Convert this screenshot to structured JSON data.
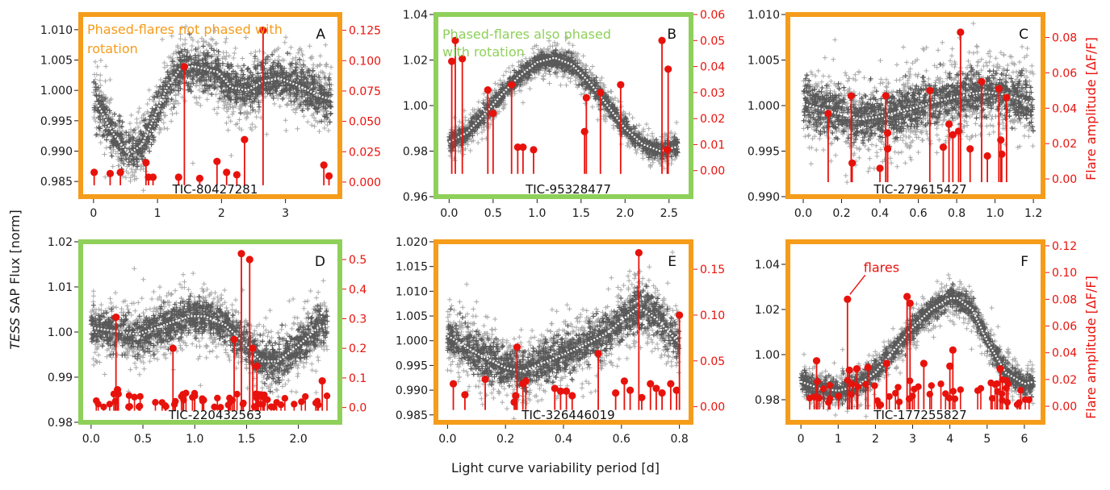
{
  "figure": {
    "ylabel_italic": "TESS",
    "ylabel_rest": " SAP Flux [norm]",
    "xlabel": "Light curve variability period [d]",
    "y2label": "Flare amplitude [ΔF/F]"
  },
  "colors": {
    "orange": "#f59c1a",
    "green": "#8fd05a",
    "flux": "#595959",
    "binned": "#ffffff",
    "flare": "#e8120c",
    "axis": "#1a1a1a"
  },
  "chart_data": [
    {
      "id": "A",
      "type": "scatter",
      "label": "A",
      "tic": "TIC-80427281",
      "frame": "orange",
      "annotation": {
        "text": "Phased-flares not phased with rotation",
        "lines": [
          "Phased-flares not phased with",
          "rotation"
        ],
        "color": "orange"
      },
      "xlim": [
        -0.2,
        3.85
      ],
      "xticks": [
        0,
        1,
        2,
        3
      ],
      "xticklabels": [
        "0",
        "1",
        "2",
        "3"
      ],
      "ylim": [
        0.9825,
        1.0125
      ],
      "yticks": [
        0.985,
        0.99,
        0.995,
        1.0,
        1.005,
        1.01
      ],
      "yticklabels": [
        "0.985",
        "0.990",
        "0.995",
        "1.000",
        "1.005",
        "1.010"
      ],
      "y2lim": [
        -0.012,
        0.138
      ],
      "y2ticks": [
        0,
        0.025,
        0.05,
        0.075,
        0.1,
        0.125
      ],
      "y2ticklabels": [
        "0.000",
        "0.025",
        "0.050",
        "0.075",
        "0.100",
        "0.125"
      ],
      "trend": [
        [
          0,
          0.999
        ],
        [
          0.3,
          0.993
        ],
        [
          0.55,
          0.9895
        ],
        [
          0.75,
          0.991
        ],
        [
          0.95,
          0.9955
        ],
        [
          1.15,
          1.0005
        ],
        [
          1.35,
          1.0035
        ],
        [
          1.55,
          1.004
        ],
        [
          1.75,
          1.0035
        ],
        [
          1.95,
          1.003
        ],
        [
          2.15,
          1.0005
        ],
        [
          2.4,
          1.0
        ],
        [
          2.65,
          1.0015
        ],
        [
          2.9,
          1.002
        ],
        [
          3.2,
          1.0008
        ],
        [
          3.55,
          0.999
        ],
        [
          3.72,
          0.9985
        ]
      ],
      "scatter_sigma": 0.0028,
      "flares": [
        [
          0.01,
          0.008
        ],
        [
          0.26,
          0.007
        ],
        [
          0.42,
          0.008
        ],
        [
          0.82,
          0.016
        ],
        [
          0.86,
          0.004
        ],
        [
          0.93,
          0.004
        ],
        [
          1.33,
          0.004
        ],
        [
          1.42,
          0.095
        ],
        [
          1.66,
          0.003
        ],
        [
          1.93,
          0.017
        ],
        [
          2.08,
          0.008
        ],
        [
          2.24,
          0.006
        ],
        [
          2.36,
          0.035
        ],
        [
          2.65,
          0.125
        ],
        [
          3.6,
          0.014
        ],
        [
          3.68,
          0.005
        ]
      ]
    },
    {
      "id": "B",
      "type": "scatter",
      "label": "B",
      "tic": "TIC-95328477",
      "frame": "green",
      "annotation": {
        "text": "Phased-flares also phased with rotation",
        "lines": [
          "Phased-flares also phased",
          "with rotation"
        ],
        "color": "green"
      },
      "xlim": [
        -0.15,
        2.75
      ],
      "xticks": [
        0,
        0.5,
        1,
        1.5,
        2,
        2.5
      ],
      "xticklabels": [
        "0.0",
        "0.5",
        "1.0",
        "1.5",
        "2.0",
        "2.5"
      ],
      "ylim": [
        0.96,
        1.04
      ],
      "yticks": [
        0.96,
        0.98,
        1.0,
        1.02,
        1.04
      ],
      "yticklabels": [
        "0.96",
        "0.98",
        "1.00",
        "1.02",
        "1.04"
      ],
      "y2lim": [
        -0.01,
        0.06
      ],
      "y2ticks": [
        0,
        0.01,
        0.02,
        0.03,
        0.04,
        0.05,
        0.06
      ],
      "y2ticklabels": [
        "0.00",
        "0.01",
        "0.02",
        "0.03",
        "0.04",
        "0.05",
        "0.06"
      ],
      "trend": [
        [
          0,
          0.984
        ],
        [
          0.2,
          0.988
        ],
        [
          0.4,
          0.996
        ],
        [
          0.6,
          1.005
        ],
        [
          0.8,
          1.013
        ],
        [
          1.0,
          1.019
        ],
        [
          1.2,
          1.021
        ],
        [
          1.4,
          1.018
        ],
        [
          1.6,
          1.01
        ],
        [
          1.8,
          1.0
        ],
        [
          2.0,
          0.99
        ],
        [
          2.2,
          0.983
        ],
        [
          2.4,
          0.98
        ],
        [
          2.6,
          0.982
        ]
      ],
      "scatter_sigma": 0.0035,
      "flares": [
        [
          0.03,
          0.042
        ],
        [
          0.07,
          0.05
        ],
        [
          0.15,
          0.043
        ],
        [
          0.44,
          0.031
        ],
        [
          0.5,
          0.022
        ],
        [
          0.71,
          0.033
        ],
        [
          0.78,
          0.009
        ],
        [
          0.84,
          0.009
        ],
        [
          0.96,
          0.008
        ],
        [
          1.54,
          0.015
        ],
        [
          1.56,
          0.028
        ],
        [
          1.72,
          0.03
        ],
        [
          1.95,
          0.033
        ],
        [
          2.42,
          0.05
        ],
        [
          2.48,
          0.008
        ],
        [
          2.49,
          0.039
        ]
      ]
    },
    {
      "id": "C",
      "type": "scatter",
      "label": "C",
      "tic": "TIC-279615427",
      "frame": "orange",
      "annotation": null,
      "xlim": [
        -0.08,
        1.25
      ],
      "xticks": [
        0,
        0.2,
        0.4,
        0.6,
        0.8,
        1.0,
        1.2
      ],
      "xticklabels": [
        "0.0",
        "0.2",
        "0.4",
        "0.6",
        "0.8",
        "1.0",
        "1.2"
      ],
      "ylim": [
        0.99,
        1.01
      ],
      "yticks": [
        0.99,
        0.995,
        1.0,
        1.005,
        1.01
      ],
      "yticklabels": [
        "0.990",
        "0.995",
        "1.000",
        "1.005",
        "1.010"
      ],
      "y2lim": [
        -0.01,
        0.093
      ],
      "y2ticks": [
        0,
        0.02,
        0.04,
        0.06,
        0.08
      ],
      "y2ticklabels": [
        "0.00",
        "0.02",
        "0.04",
        "0.06",
        "0.08"
      ],
      "trend": [
        [
          0,
          1.0002
        ],
        [
          0.15,
          0.9993
        ],
        [
          0.3,
          0.9985
        ],
        [
          0.4,
          0.9988
        ],
        [
          0.55,
          0.9996
        ],
        [
          0.7,
          1.0005
        ],
        [
          0.85,
          1.0012
        ],
        [
          0.95,
          1.0015
        ],
        [
          1.05,
          1.0012
        ],
        [
          1.2,
          1.0002
        ]
      ],
      "scatter_sigma": 0.0022,
      "flares": [
        [
          0.13,
          0.037
        ],
        [
          0.25,
          0.047
        ],
        [
          0.255,
          0.009
        ],
        [
          0.4,
          0.006
        ],
        [
          0.43,
          0.047
        ],
        [
          0.44,
          0.026
        ],
        [
          0.44,
          0.017
        ],
        [
          0.66,
          0.05
        ],
        [
          0.73,
          0.018
        ],
        [
          0.76,
          0.031
        ],
        [
          0.78,
          0.025
        ],
        [
          0.81,
          0.027
        ],
        [
          0.82,
          0.083
        ],
        [
          0.87,
          0.017
        ],
        [
          0.93,
          0.055
        ],
        [
          0.96,
          0.013
        ],
        [
          1.02,
          0.051
        ],
        [
          1.03,
          0.022
        ],
        [
          1.035,
          0.014
        ],
        [
          1.06,
          0.046
        ]
      ]
    },
    {
      "id": "D",
      "type": "scatter",
      "label": "D",
      "tic": "TIC-220432563",
      "frame": "green",
      "annotation": null,
      "xlim": [
        -0.1,
        2.4
      ],
      "xticks": [
        0,
        0.5,
        1,
        1.5,
        2
      ],
      "xticklabels": [
        "0.0",
        "0.5",
        "1.0",
        "1.5",
        "2.0"
      ],
      "ylim": [
        0.98,
        1.02
      ],
      "yticks": [
        0.98,
        0.99,
        1.0,
        1.01,
        1.02
      ],
      "yticklabels": [
        "0.98",
        "0.99",
        "1.00",
        "1.01",
        "1.02"
      ],
      "y2lim": [
        -0.05,
        0.56
      ],
      "y2ticks": [
        0,
        0.1,
        0.2,
        0.3,
        0.4,
        0.5
      ],
      "y2ticklabels": [
        "0.0",
        "0.1",
        "0.2",
        "0.3",
        "0.4",
        "0.5"
      ],
      "trend": [
        [
          0,
          1.001
        ],
        [
          0.2,
          1.0003
        ],
        [
          0.45,
          0.9995
        ],
        [
          0.7,
          1.0015
        ],
        [
          0.95,
          1.0035
        ],
        [
          1.1,
          1.0035
        ],
        [
          1.3,
          1.0015
        ],
        [
          1.5,
          0.997
        ],
        [
          1.65,
          0.9935
        ],
        [
          1.8,
          0.9935
        ],
        [
          2.0,
          0.997
        ],
        [
          2.2,
          1.0012
        ],
        [
          2.28,
          1.0012
        ]
      ],
      "scatter_sigma": 0.0035,
      "flares": [
        [
          0.24,
          0.305
        ],
        [
          0.255,
          0.06
        ],
        [
          0.79,
          0.2
        ],
        [
          1.38,
          0.23
        ],
        [
          1.45,
          0.52
        ],
        [
          1.53,
          0.5
        ],
        [
          1.56,
          0.2
        ],
        [
          1.6,
          0.14
        ],
        [
          2.23,
          0.09
        ]
      ],
      "small_flares": {
        "x_range": [
          0.0,
          2.3
        ],
        "count": 62,
        "y_range": [
          0.0,
          0.05
        ]
      }
    },
    {
      "id": "E",
      "type": "scatter",
      "label": "E",
      "tic": "TIC-326446019",
      "frame": "orange",
      "annotation": null,
      "xlim": [
        -0.04,
        0.84
      ],
      "xticks": [
        0,
        0.2,
        0.4,
        0.6,
        0.8
      ],
      "xticklabels": [
        "0.0",
        "0.2",
        "0.4",
        "0.6",
        "0.8"
      ],
      "ylim": [
        0.9835,
        1.02
      ],
      "yticks": [
        0.985,
        0.99,
        0.995,
        1.0,
        1.005,
        1.01,
        1.015,
        1.02
      ],
      "yticklabels": [
        "0.985",
        "0.990",
        "0.995",
        "1.000",
        "1.005",
        "1.010",
        "1.015",
        "1.020"
      ],
      "y2lim": [
        -0.017,
        0.18
      ],
      "y2ticks": [
        0,
        0.05,
        0.1,
        0.15
      ],
      "y2ticklabels": [
        "0.00",
        "0.05",
        "0.10",
        "0.15"
      ],
      "trend": [
        [
          0,
          1.001
        ],
        [
          0.1,
          0.9975
        ],
        [
          0.2,
          0.9945
        ],
        [
          0.26,
          0.9938
        ],
        [
          0.35,
          0.996
        ],
        [
          0.45,
          0.9985
        ],
        [
          0.55,
          1.0015
        ],
        [
          0.62,
          1.005
        ],
        [
          0.66,
          1.0068
        ],
        [
          0.72,
          1.0045
        ],
        [
          0.8,
          0.9995
        ]
      ],
      "scatter_sigma": 0.0035,
      "flares": [
        [
          0.02,
          0.025
        ],
        [
          0.06,
          0.013
        ],
        [
          0.13,
          0.03
        ],
        [
          0.23,
          0.005
        ],
        [
          0.235,
          0.012
        ],
        [
          0.24,
          0.065
        ],
        [
          0.26,
          0.025
        ],
        [
          0.27,
          0.028
        ],
        [
          0.37,
          0.02
        ],
        [
          0.39,
          0.017
        ],
        [
          0.41,
          0.017
        ],
        [
          0.43,
          0.012
        ],
        [
          0.52,
          0.058
        ],
        [
          0.58,
          0.015
        ],
        [
          0.61,
          0.028
        ],
        [
          0.63,
          0.018
        ],
        [
          0.66,
          0.168
        ],
        [
          0.67,
          0.01
        ],
        [
          0.7,
          0.025
        ],
        [
          0.72,
          0.02
        ],
        [
          0.74,
          0.015
        ],
        [
          0.77,
          0.025
        ],
        [
          0.79,
          0.018
        ],
        [
          0.8,
          0.1
        ]
      ]
    },
    {
      "id": "F",
      "type": "scatter",
      "label": "F",
      "tic": "TIC-177255827",
      "frame": "orange",
      "annotation": {
        "text": "flares",
        "lines": [
          "flares"
        ],
        "color": "flare"
      },
      "xlim": [
        -0.35,
        6.5
      ],
      "xticks": [
        0,
        1,
        2,
        3,
        4,
        5,
        6
      ],
      "xticklabels": [
        "0",
        "1",
        "2",
        "3",
        "4",
        "5",
        "6"
      ],
      "ylim": [
        0.97,
        1.05
      ],
      "yticks": [
        0.98,
        1.0,
        1.02,
        1.04
      ],
      "yticklabels": [
        "0.98",
        "1.00",
        "1.02",
        "1.04"
      ],
      "y2lim": [
        -0.012,
        0.123
      ],
      "y2ticks": [
        0,
        0.02,
        0.04,
        0.06,
        0.08,
        0.1,
        0.12
      ],
      "y2ticklabels": [
        "0.00",
        "0.02",
        "0.04",
        "0.06",
        "0.08",
        "0.10",
        "0.12"
      ],
      "trend": [
        [
          0,
          0.988
        ],
        [
          0.5,
          0.985
        ],
        [
          1.0,
          0.984
        ],
        [
          1.5,
          0.986
        ],
        [
          2.0,
          0.992
        ],
        [
          2.5,
          1.002
        ],
        [
          3.0,
          1.012
        ],
        [
          3.5,
          1.02
        ],
        [
          4.0,
          1.025
        ],
        [
          4.2,
          1.025
        ],
        [
          4.6,
          1.02
        ],
        [
          5.0,
          1.006
        ],
        [
          5.5,
          0.992
        ],
        [
          6.0,
          0.987
        ],
        [
          6.25,
          0.988
        ]
      ],
      "scatter_sigma": 0.0042,
      "flares": [
        [
          0.42,
          0.034
        ],
        [
          1.25,
          0.08
        ],
        [
          1.3,
          0.027
        ],
        [
          1.5,
          0.028
        ],
        [
          1.8,
          0.029
        ],
        [
          2.3,
          0.032
        ],
        [
          2.85,
          0.082
        ],
        [
          2.93,
          0.077
        ],
        [
          3.3,
          0.032
        ],
        [
          4.0,
          0.03
        ],
        [
          4.08,
          0.042
        ],
        [
          5.35,
          0.028
        ]
      ],
      "small_flares": {
        "x_range": [
          0.1,
          6.25
        ],
        "count": 55,
        "y_range": [
          0.0,
          0.02
        ]
      }
    }
  ]
}
